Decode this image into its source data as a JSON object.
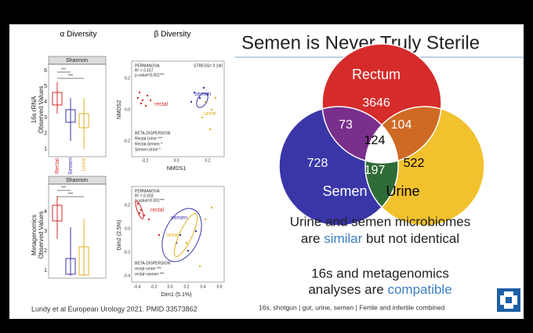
{
  "slide": {
    "title": "Semen is Never Truly Sterile",
    "venn": {
      "rectum_label": "Rectum",
      "rectum": "3646",
      "semen_label": "Semen",
      "semen": "728",
      "urine_label": "Urine",
      "urine": "522",
      "rectum_semen": "73",
      "rectum_urine": "104",
      "semen_urine": "197",
      "all": "124"
    },
    "statement1": {
      "line1": "Urine and semen microbiomes",
      "pre": "are ",
      "hl": "similar",
      "post": " but not identical"
    },
    "statement2": {
      "line1": "16s and metagenomics",
      "pre": "analyses are ",
      "hl": "compatible"
    },
    "footnote_left": "Lundy et al European Urology 2021. PMID 33573862",
    "footnote_right": "16s, shotgun | gut, urine, semen | Fertile and infertile combined",
    "alpha": {
      "heading": "α Diversity",
      "strip": "Shannon",
      "row1": [
        "16s rRNA",
        "Observed Values"
      ],
      "row2": [
        "Metagenomics",
        "Observed Values"
      ],
      "yticks1": [
        "6",
        "5",
        "4",
        "3",
        "2",
        "1"
      ],
      "yticks2": [
        "4",
        "3",
        "2",
        "1"
      ],
      "categories": [
        "Rectal",
        "Semen",
        "Urine"
      ],
      "sig": "***"
    },
    "beta": {
      "heading": "β Diversity",
      "top": {
        "permanova": "PERMANOVA",
        "r2": "R² = 0.157",
        "p": "p-value=0.001***",
        "stress": "STRESS= 0.140",
        "ylabel": "NMDS2",
        "xlabel": "NMDS1",
        "yticks": [
          "0.2",
          "0.0",
          "-0.2"
        ],
        "xticks": [
          "-0.2",
          "0.0",
          "0.2"
        ],
        "groups": [
          "rectal",
          "semen",
          "urine"
        ],
        "disp": "BETA-DISPERSION",
        "disp_rows": [
          "Rectal-Urine ***",
          "Rectal-Semen *",
          "Semen-Urine *"
        ]
      },
      "bottom": {
        "permanova": "PERMANOVA",
        "r2": "R² = 0.203",
        "p": "p-value=0.001***",
        "ylabel": "Dim2 (2.5%)",
        "xlabel": "Dim1 (5.1%)",
        "yticks": [
          "0.2",
          "0.0",
          "-0.2",
          "-0.4"
        ],
        "xticks": [
          "-0.4",
          "-0.2",
          "0.0",
          "0.2",
          "0.4",
          "0.6"
        ],
        "groups": [
          "rectal",
          "semen",
          "urine"
        ],
        "disp": "BETA-DISPERSION",
        "disp_rows": [
          "rectal~urine ***",
          "rectal~semen ***"
        ]
      }
    }
  }
}
